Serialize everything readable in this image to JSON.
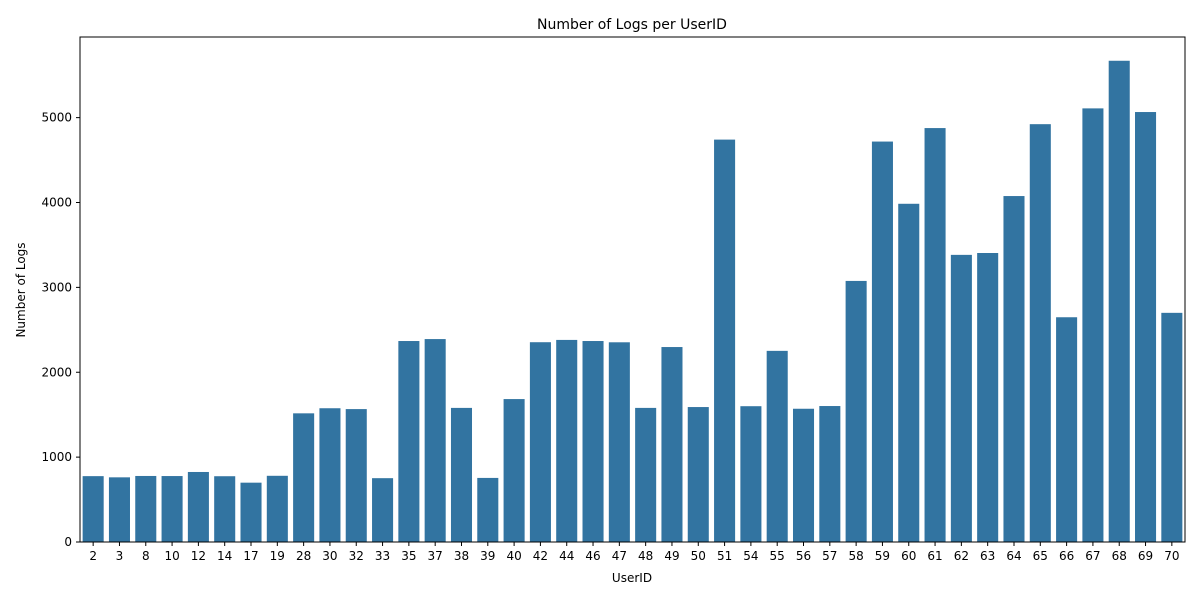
{
  "chart_data": {
    "type": "bar",
    "title": "Number of Logs per UserID",
    "xlabel": "UserID",
    "ylabel": "Number of Logs",
    "categories": [
      "2",
      "3",
      "8",
      "10",
      "12",
      "14",
      "17",
      "19",
      "28",
      "30",
      "32",
      "33",
      "35",
      "37",
      "38",
      "39",
      "40",
      "42",
      "44",
      "46",
      "47",
      "48",
      "49",
      "50",
      "51",
      "54",
      "55",
      "56",
      "57",
      "58",
      "59",
      "60",
      "61",
      "62",
      "63",
      "64",
      "65",
      "66",
      "67",
      "68",
      "69",
      "70"
    ],
    "values": [
      776,
      762,
      778,
      777,
      825,
      775,
      699,
      780,
      1516,
      1576,
      1566,
      752,
      2368,
      2391,
      1580,
      755,
      1684,
      2354,
      2381,
      2368,
      2353,
      1580,
      2297,
      1590,
      4741,
      1600,
      2252,
      1570,
      1602,
      3076,
      4718,
      3985,
      4877,
      3383,
      3405,
      4076,
      4923,
      2648,
      5109,
      5670,
      5066,
      2700
    ],
    "ylim": [
      0,
      5950
    ],
    "yticks": [
      0,
      1000,
      2000,
      3000,
      4000,
      5000
    ],
    "bar_color": "#3274a1",
    "grid": false,
    "legend": "none"
  }
}
